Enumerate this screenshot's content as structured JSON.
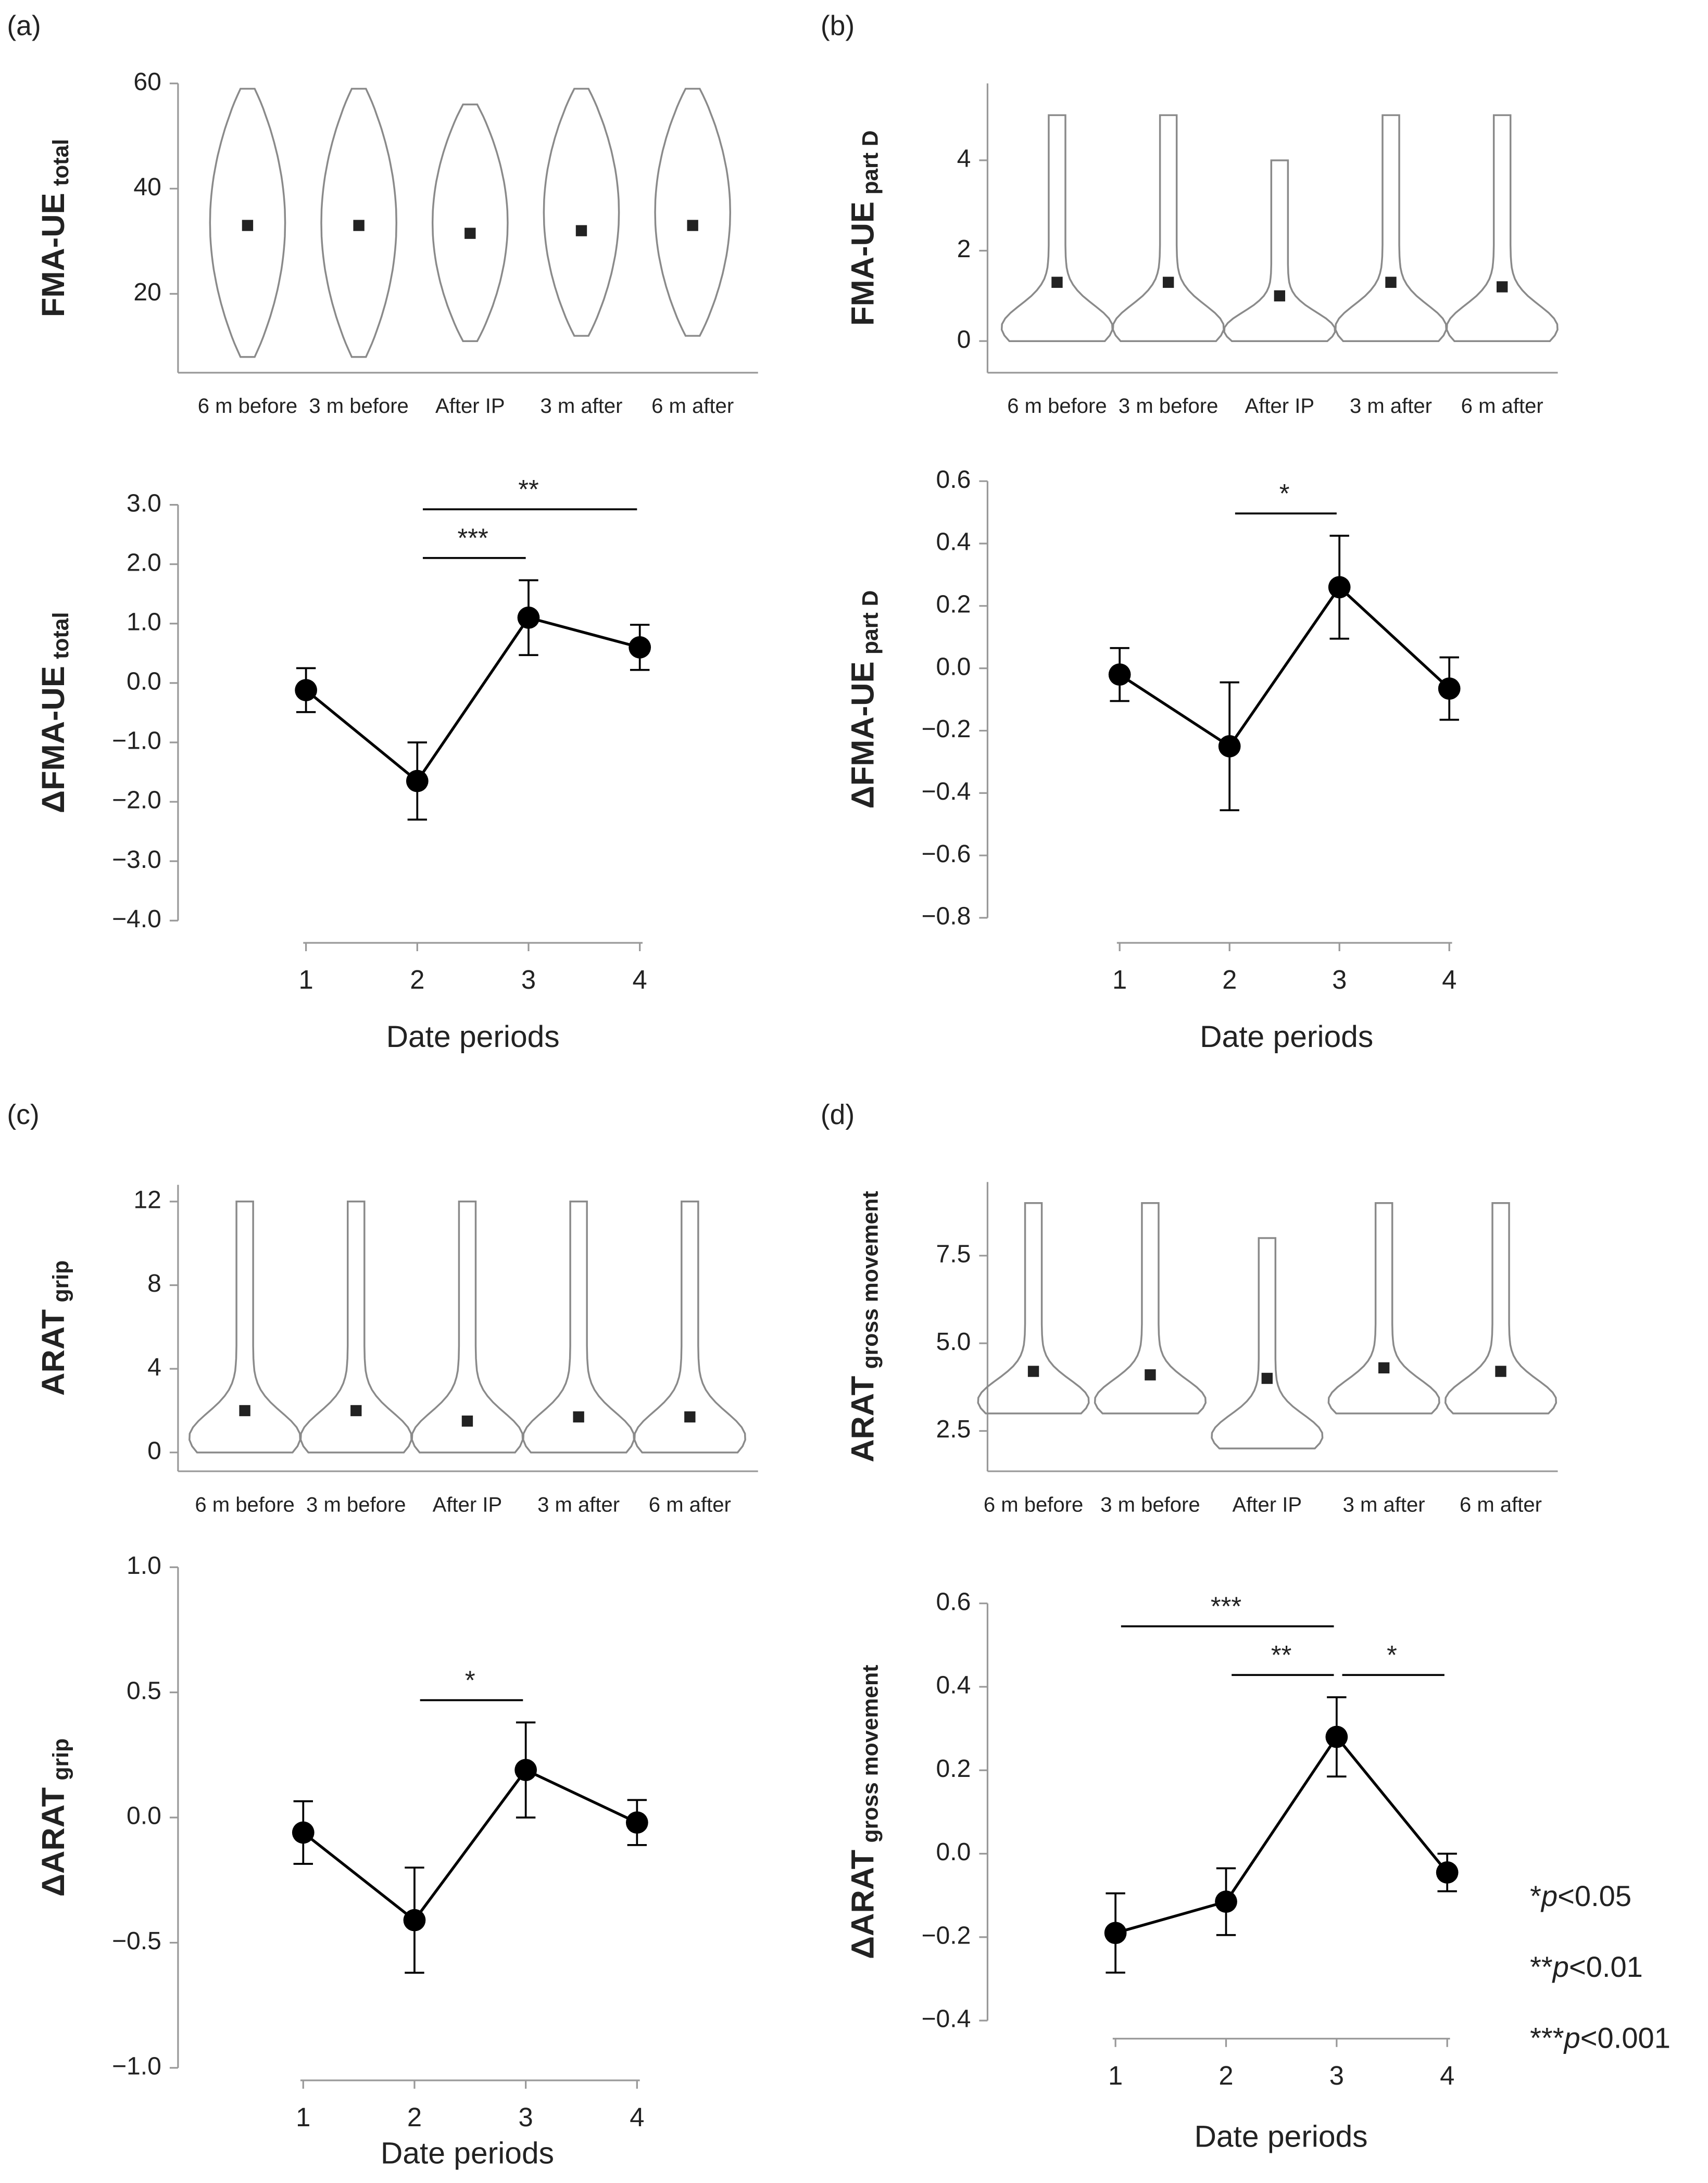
{
  "chart_data": [
    {
      "type": "violin",
      "panel": "(a)",
      "ylabel": {
        "main": "FMA-UE",
        "sub": "total"
      },
      "categories": [
        "6 m before",
        "3 m before",
        "After IP",
        "3 m after",
        "6 m after"
      ],
      "values": [
        33,
        33,
        31.5,
        32,
        33
      ],
      "min": [
        8,
        8,
        11,
        12,
        12
      ],
      "max": [
        59,
        59,
        56,
        59,
        59
      ],
      "ylim": [
        5,
        60
      ],
      "yticks": [
        20,
        40,
        60
      ],
      "color": "#222222",
      "outline_color": "#8a8a8a"
    },
    {
      "type": "line",
      "ylabel": {
        "main": "ΔFMA-UE",
        "sub": "total"
      },
      "xlabel": "Date periods",
      "categories": [
        "1",
        "2",
        "3",
        "4"
      ],
      "values": [
        -0.12,
        -1.65,
        1.1,
        0.6
      ],
      "errors": [
        0.37,
        0.65,
        0.63,
        0.38
      ],
      "ylim": [
        -4,
        3
      ],
      "yticks": [
        {
          "value": 3,
          "label": "3.0"
        },
        {
          "value": 2,
          "label": "2.0"
        },
        {
          "value": 1,
          "label": "1.0"
        },
        {
          "value": 0,
          "label": "0.0"
        },
        {
          "value": -1,
          "label": "−1.0"
        },
        {
          "value": -2,
          "label": "−2.0"
        },
        {
          "value": -3,
          "label": "−3.0"
        },
        {
          "value": -4,
          "label": "−4.0"
        }
      ],
      "annotations": [
        {
          "from": "2",
          "to": "4",
          "label": "**"
        },
        {
          "from": "2",
          "to": "3",
          "label": "***"
        }
      ],
      "color": "#000000"
    },
    {
      "type": "violin",
      "panel": "(b)",
      "ylabel": {
        "main": "FMA-UE",
        "sub": "part D"
      },
      "categories": [
        "6 m before",
        "3 m before",
        "After IP",
        "3 m after",
        "6 m after"
      ],
      "values": [
        1.3,
        1.3,
        1.0,
        1.3,
        1.2
      ],
      "min": [
        0,
        0,
        0,
        0,
        0
      ],
      "max": [
        5,
        5,
        4,
        5,
        5
      ],
      "ylim": [
        -0.7,
        5.7
      ],
      "yticks": [
        0,
        2,
        4
      ],
      "color": "#222222",
      "outline_color": "#8a8a8a"
    },
    {
      "type": "line",
      "ylabel": {
        "main": "ΔFMA-UE",
        "sub": "part D"
      },
      "xlabel": "Date periods",
      "categories": [
        "1",
        "2",
        "3",
        "4"
      ],
      "values": [
        -0.02,
        -0.25,
        0.26,
        -0.065
      ],
      "errors": [
        0.085,
        0.205,
        0.165,
        0.1
      ],
      "ylim": [
        -0.8,
        0.6
      ],
      "yticks": [
        0.6,
        0.4,
        0.2,
        {
          "value": 0,
          "label": "0.0"
        },
        {
          "value": -0.2,
          "label": "−0.2"
        },
        {
          "value": -0.4,
          "label": "−0.4"
        },
        {
          "value": -0.6,
          "label": "−0.6"
        },
        {
          "value": -0.8,
          "label": "−0.8"
        }
      ],
      "annotations": [
        {
          "from": "2",
          "to": "3",
          "label": "*"
        }
      ],
      "color": "#000000"
    },
    {
      "type": "violin",
      "panel": "(c)",
      "ylabel": {
        "main": "ARAT",
        "sub": "grip"
      },
      "categories": [
        "6 m before",
        "3 m before",
        "After IP",
        "3 m after",
        "6 m after"
      ],
      "values": [
        2.0,
        2.0,
        1.5,
        1.7,
        1.7
      ],
      "min": [
        0,
        0,
        0,
        0,
        0
      ],
      "max": [
        12,
        12,
        12,
        12,
        12
      ],
      "ylim": [
        -0.9,
        12.8
      ],
      "yticks": [
        0,
        4,
        8,
        12
      ],
      "color": "#222222",
      "outline_color": "#8a8a8a"
    },
    {
      "type": "line",
      "ylabel": {
        "main": "ΔARAT",
        "sub": "grip"
      },
      "xlabel": "Date periods",
      "categories": [
        "1",
        "2",
        "3",
        "4"
      ],
      "values": [
        -0.06,
        -0.41,
        0.19,
        -0.02
      ],
      "errors": [
        0.125,
        0.21,
        0.19,
        0.09
      ],
      "ylim": [
        -1,
        1
      ],
      "yticks": [
        {
          "value": 1,
          "label": "1.0"
        },
        0.5,
        {
          "value": 0,
          "label": "0.0"
        },
        {
          "value": -0.5,
          "label": "−0.5"
        },
        {
          "value": -1,
          "label": "−1.0"
        }
      ],
      "annotations": [
        {
          "from": "2",
          "to": "3",
          "label": "*"
        }
      ],
      "color": "#000000"
    },
    {
      "type": "violin",
      "panel": "(d)",
      "ylabel": {
        "main": "ARAT",
        "sub": "gross movement"
      },
      "categories": [
        "6 m before",
        "3 m before",
        "After IP",
        "3 m after",
        "6 m after"
      ],
      "values": [
        4.2,
        4.1,
        4.0,
        4.3,
        4.2
      ],
      "min": [
        3,
        3,
        2,
        3,
        3
      ],
      "max": [
        9,
        9,
        8,
        9,
        9
      ],
      "ylim": [
        1.35,
        9.6
      ],
      "yticks": [
        2.5,
        {
          "value": 5,
          "label": "5.0"
        },
        7.5
      ],
      "color": "#222222",
      "outline_color": "#8a8a8a"
    },
    {
      "type": "line",
      "ylabel": {
        "main": "ΔARAT",
        "sub": "gross movement"
      },
      "xlabel": "Date periods",
      "categories": [
        "1",
        "2",
        "3",
        "4"
      ],
      "values": [
        -0.19,
        -0.115,
        0.28,
        -0.045
      ],
      "errors": [
        0.095,
        0.08,
        0.095,
        0.045
      ],
      "ylim": [
        -0.4,
        0.6
      ],
      "yticks": [
        0.6,
        0.4,
        0.2,
        {
          "value": 0,
          "label": "0.0"
        },
        {
          "value": -0.2,
          "label": "−0.2"
        },
        {
          "value": -0.4,
          "label": "−0.4"
        }
      ],
      "annotations": [
        {
          "from": "1",
          "to": "3",
          "label": "***"
        },
        {
          "from": "2",
          "to": "3",
          "label": "**"
        },
        {
          "from": "3",
          "to": "4",
          "label": "*"
        }
      ],
      "color": "#000000"
    }
  ],
  "significance_legend": [
    {
      "stars": "*",
      "p": "p",
      "threshold": "<0.05"
    },
    {
      "stars": "**",
      "p": "p",
      "threshold": "<0.01"
    },
    {
      "stars": "***",
      "p": "p",
      "threshold": "<0.001"
    }
  ]
}
